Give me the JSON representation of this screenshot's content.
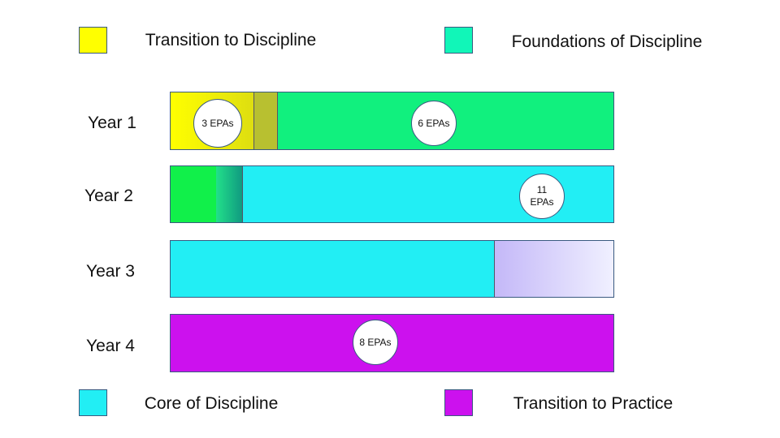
{
  "legend": {
    "top": [
      "Transition to Discipline",
      "Foundations of Discipline"
    ],
    "bottom": [
      "Core of Discipline",
      "Transition to Practice"
    ]
  },
  "rows": [
    "Year 1",
    "Year 2",
    "Year 3",
    "Year 4"
  ],
  "badges": [
    "3 EPAs",
    "6 EPAs",
    "11 EPAs",
    "8 EPAs"
  ]
}
